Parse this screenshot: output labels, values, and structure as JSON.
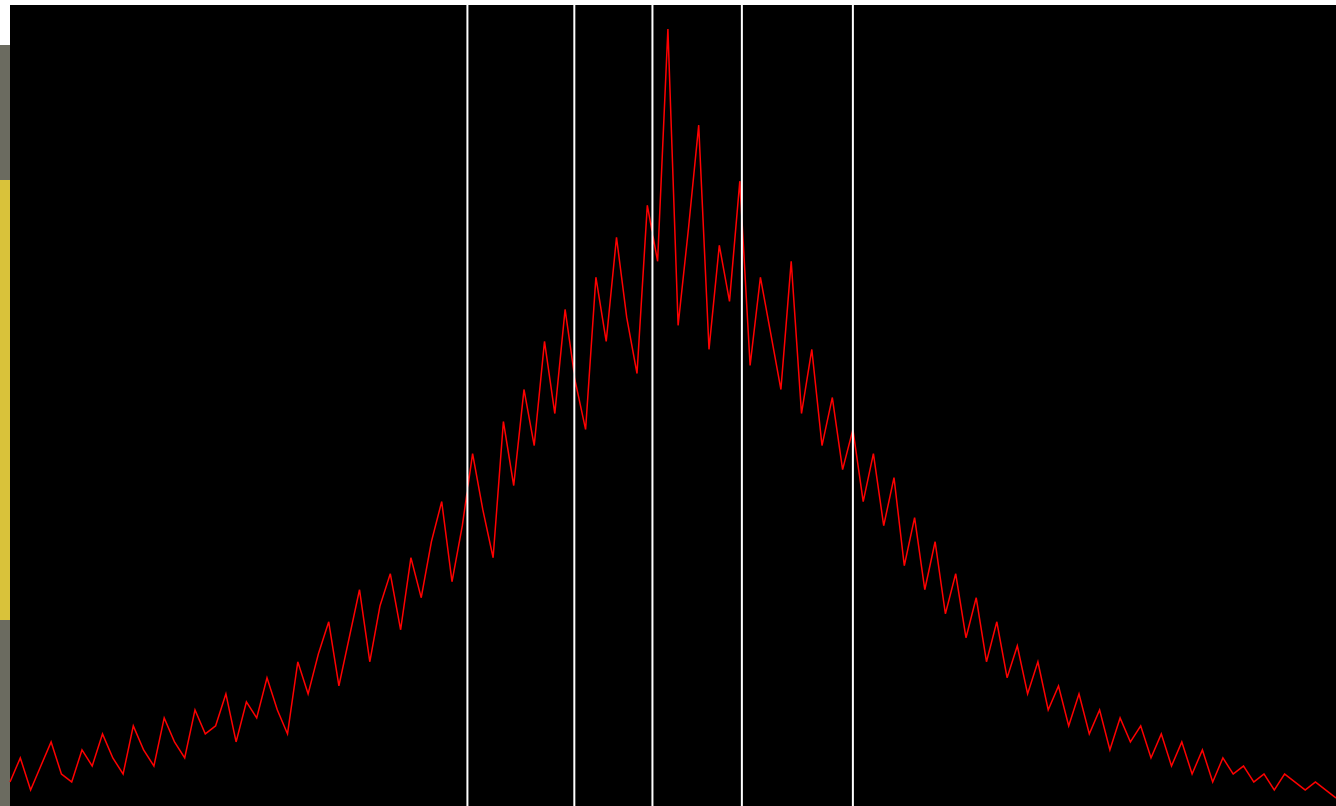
{
  "chart_data": {
    "type": "line",
    "values": [
      3,
      6,
      2,
      5,
      8,
      4,
      3,
      7,
      5,
      9,
      6,
      4,
      10,
      7,
      5,
      11,
      8,
      6,
      12,
      9,
      10,
      14,
      8,
      13,
      11,
      16,
      12,
      9,
      18,
      14,
      19,
      23,
      15,
      21,
      27,
      18,
      25,
      29,
      22,
      31,
      26,
      33,
      38,
      28,
      35,
      44,
      37,
      31,
      48,
      40,
      52,
      45,
      58,
      49,
      62,
      53,
      47,
      66,
      58,
      71,
      61,
      54,
      75,
      68,
      97,
      60,
      72,
      85,
      57,
      70,
      63,
      78,
      55,
      66,
      59,
      52,
      68,
      49,
      57,
      45,
      51,
      42,
      47,
      38,
      44,
      35,
      41,
      30,
      36,
      27,
      33,
      24,
      29,
      21,
      26,
      18,
      23,
      16,
      20,
      14,
      18,
      12,
      15,
      10,
      14,
      9,
      12,
      7,
      11,
      8,
      10,
      6,
      9,
      5,
      8,
      4,
      7,
      3,
      6,
      4,
      5,
      3,
      4,
      2,
      4,
      3,
      2,
      3,
      2,
      1
    ],
    "color": "#ff0000",
    "markers": [
      44.5,
      54.9,
      62.5,
      71.2,
      82.0
    ],
    "marker_color": "#ffffff",
    "xlim": [
      0,
      129
    ],
    "ylim": [
      0,
      100
    ]
  }
}
